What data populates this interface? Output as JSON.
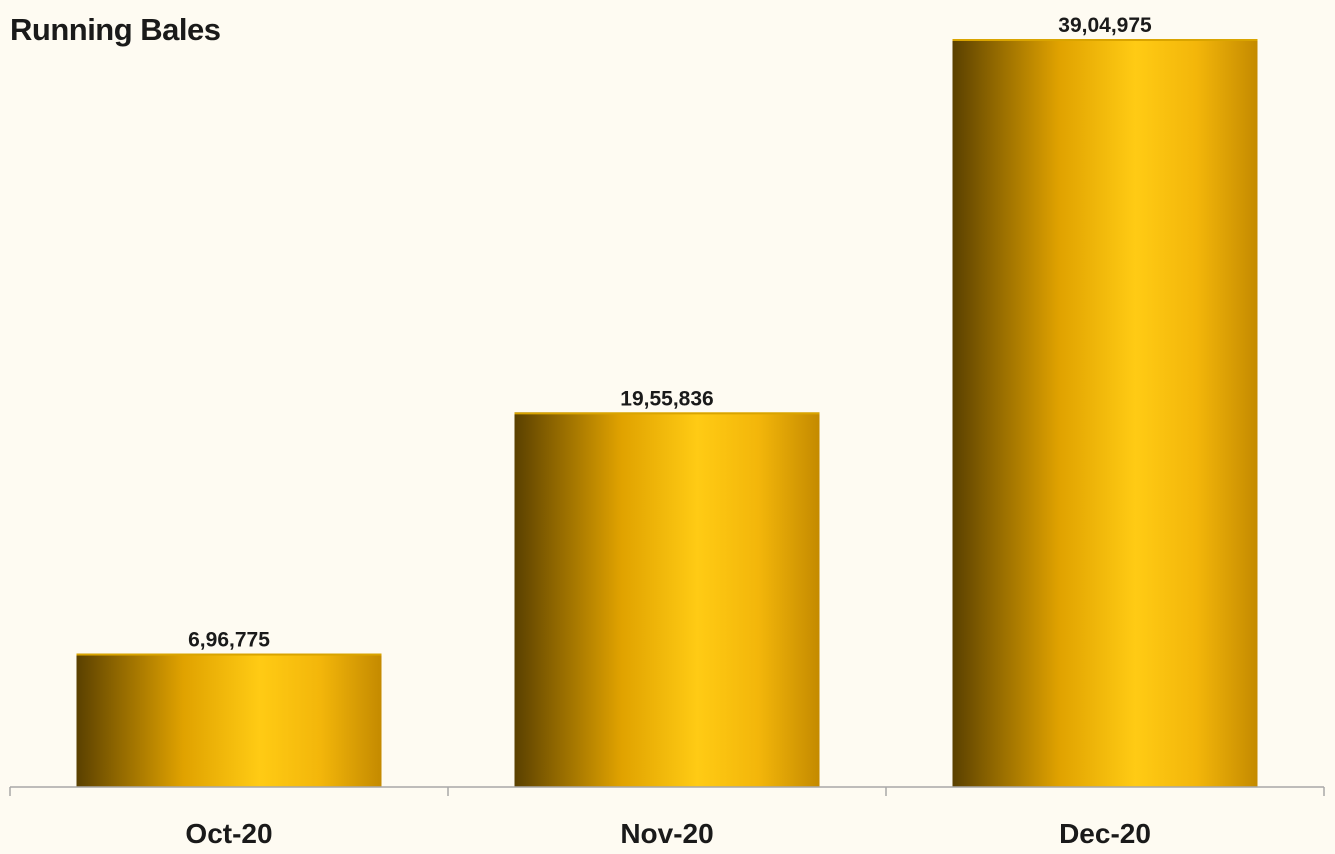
{
  "chart_data": {
    "type": "bar",
    "title": "Running Bales",
    "categories": [
      "Oct-20",
      "Nov-20",
      "Dec-20"
    ],
    "values": [
      696775,
      1955836,
      3904975
    ],
    "value_labels": [
      "6,96,775",
      "19,55,836",
      "39,04,975"
    ],
    "xlabel": "",
    "ylabel": "",
    "ylim": [
      0,
      3904975
    ],
    "grid": false,
    "legend": "none",
    "bar_color": "#f2b705",
    "bar_shade_color": "#5a4000"
  }
}
